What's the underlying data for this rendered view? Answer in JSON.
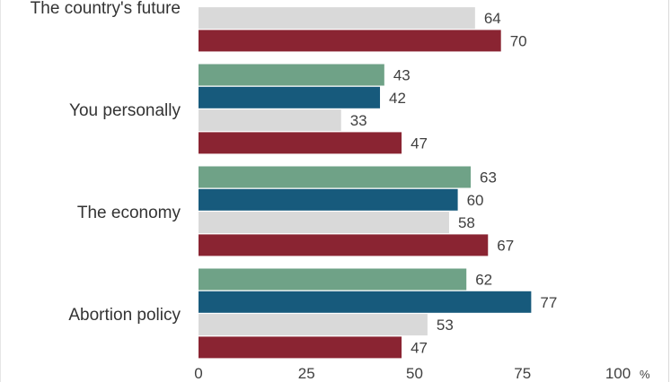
{
  "chart_data": {
    "type": "bar",
    "orientation": "horizontal",
    "categories": [
      "The country's future",
      "You personally",
      "The economy",
      "Abortion policy"
    ],
    "series": [
      {
        "color": "#6fa287",
        "values": [
          null,
          43,
          63,
          62
        ]
      },
      {
        "color": "#175a7c",
        "values": [
          null,
          42,
          60,
          77
        ]
      },
      {
        "color": "#d9d9d9",
        "values": [
          64,
          33,
          58,
          53
        ]
      },
      {
        "color": "#8a2432",
        "values": [
          70,
          47,
          67,
          47
        ]
      }
    ],
    "x_ticks": [
      "0",
      "25",
      "50",
      "75",
      "100"
    ],
    "x_unit": "%",
    "xlim": [
      0,
      100
    ],
    "grid": false,
    "data_labels": true
  }
}
